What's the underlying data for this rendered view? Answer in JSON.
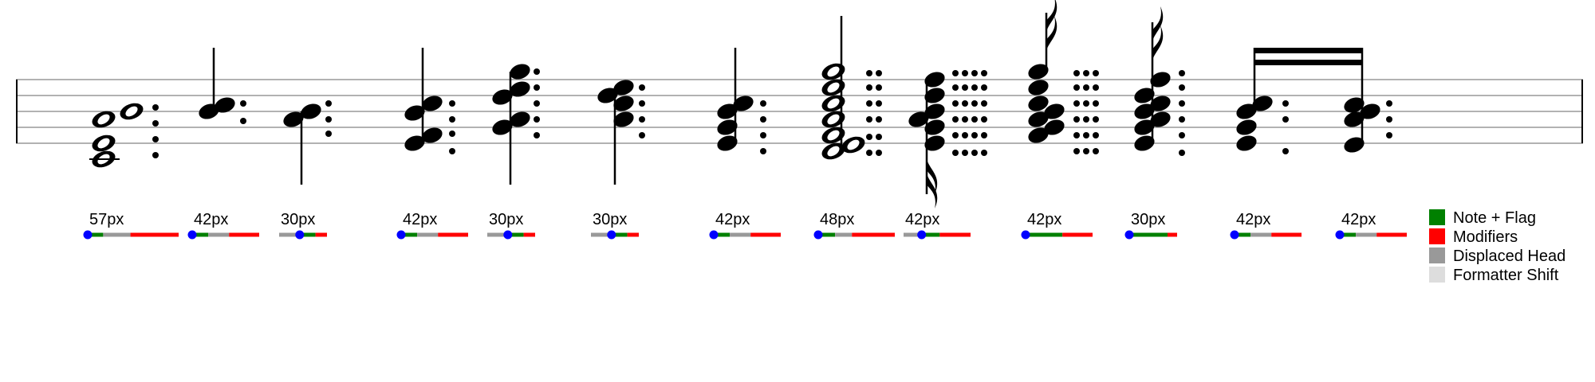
{
  "colors": {
    "note_flag": "#008000",
    "modifiers": "#ff0000",
    "displaced_head": "#999999",
    "formatter_shift": "#dddddd",
    "origin_dot": "#0000ff",
    "ink": "#000000",
    "staff_line": "#999999"
  },
  "legend": {
    "items": [
      {
        "label": "Note + Flag",
        "color": "#008000"
      },
      {
        "label": "Modifiers",
        "color": "#ff0000"
      },
      {
        "label": "Displaced Head",
        "color": "#999999"
      },
      {
        "label": "Formatter Shift",
        "color": "#dddddd"
      }
    ]
  },
  "columns": [
    {
      "width_label": "57px",
      "segments": [
        {
          "kind": "note_flag",
          "len": 0.17
        },
        {
          "kind": "displaced_head",
          "len": 0.3
        },
        {
          "kind": "modifiers",
          "len": 0.53
        }
      ],
      "dot": "start"
    },
    {
      "width_label": "42px",
      "segments": [
        {
          "kind": "note_flag",
          "len": 0.24
        },
        {
          "kind": "displaced_head",
          "len": 0.31
        },
        {
          "kind": "modifiers",
          "len": 0.45
        }
      ],
      "dot": "start"
    },
    {
      "width_label": "30px",
      "segments": [
        {
          "kind": "displaced_head",
          "len": 0.43
        },
        {
          "kind": "note_flag",
          "len": 0.33
        },
        {
          "kind": "modifiers",
          "len": 0.24
        }
      ],
      "dot": "mid"
    },
    {
      "width_label": "42px",
      "segments": [
        {
          "kind": "note_flag",
          "len": 0.24
        },
        {
          "kind": "displaced_head",
          "len": 0.31
        },
        {
          "kind": "modifiers",
          "len": 0.45
        }
      ],
      "dot": "start"
    },
    {
      "width_label": "30px",
      "segments": [
        {
          "kind": "displaced_head",
          "len": 0.43
        },
        {
          "kind": "note_flag",
          "len": 0.33
        },
        {
          "kind": "modifiers",
          "len": 0.24
        }
      ],
      "dot": "mid"
    },
    {
      "width_label": "30px",
      "segments": [
        {
          "kind": "displaced_head",
          "len": 0.43
        },
        {
          "kind": "note_flag",
          "len": 0.33
        },
        {
          "kind": "modifiers",
          "len": 0.24
        }
      ],
      "dot": "mid"
    },
    {
      "width_label": "42px",
      "segments": [
        {
          "kind": "note_flag",
          "len": 0.24
        },
        {
          "kind": "displaced_head",
          "len": 0.31
        },
        {
          "kind": "modifiers",
          "len": 0.45
        }
      ],
      "dot": "start"
    },
    {
      "width_label": "48px",
      "segments": [
        {
          "kind": "note_flag",
          "len": 0.22
        },
        {
          "kind": "displaced_head",
          "len": 0.22
        },
        {
          "kind": "modifiers",
          "len": 0.56
        }
      ],
      "dot": "start"
    },
    {
      "width_label": "42px",
      "segments": [
        {
          "kind": "displaced_head",
          "len": 0.27
        },
        {
          "kind": "note_flag",
          "len": 0.27
        },
        {
          "kind": "modifiers",
          "len": 0.46
        }
      ],
      "dot": "mid"
    },
    {
      "width_label": "42px",
      "segments": [
        {
          "kind": "note_flag",
          "len": 0.55
        },
        {
          "kind": "modifiers",
          "len": 0.45
        }
      ],
      "dot": "start"
    },
    {
      "width_label": "30px",
      "segments": [
        {
          "kind": "note_flag",
          "len": 0.8
        },
        {
          "kind": "modifiers",
          "len": 0.2
        }
      ],
      "dot": "start"
    },
    {
      "width_label": "42px",
      "segments": [
        {
          "kind": "note_flag",
          "len": 0.24
        },
        {
          "kind": "displaced_head",
          "len": 0.31
        },
        {
          "kind": "modifiers",
          "len": 0.45
        }
      ],
      "dot": "start"
    },
    {
      "width_label": "42px",
      "segments": [
        {
          "kind": "note_flag",
          "len": 0.24
        },
        {
          "kind": "displaced_head",
          "len": 0.31
        },
        {
          "kind": "modifiers",
          "len": 0.45
        }
      ],
      "dot": "start"
    }
  ]
}
